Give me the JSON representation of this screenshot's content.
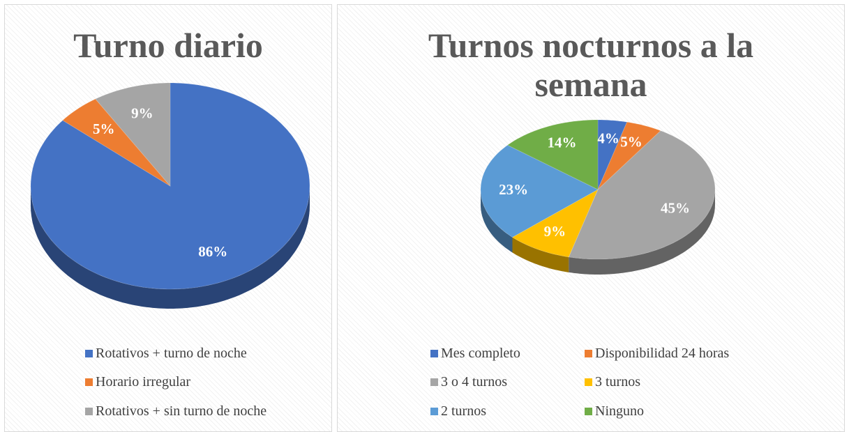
{
  "chart_data": [
    {
      "type": "pie",
      "title": "Turno diario",
      "categories": [
        "Rotativos + turno de noche",
        "Horario irregular",
        "Rotativos + sin turno de noche"
      ],
      "values": [
        86,
        5,
        9
      ],
      "value_labels": [
        "86%",
        "5%",
        "9%"
      ],
      "colors": [
        "#4472c4",
        "#ed7d31",
        "#a5a5a5"
      ],
      "legend": "bottom"
    },
    {
      "type": "pie",
      "title": "Turnos nocturnos a la semana",
      "categories": [
        "Mes completo",
        "Disponibilidad 24 horas",
        "3 o 4 turnos",
        "3 turnos",
        "2 turnos",
        "Ninguno"
      ],
      "values": [
        4,
        5,
        45,
        9,
        23,
        14
      ],
      "value_labels": [
        "4%",
        "5%",
        "45%",
        "9%",
        "23%",
        "14%"
      ],
      "colors": [
        "#4472c4",
        "#ed7d31",
        "#a5a5a5",
        "#ffc000",
        "#5b9bd5",
        "#70ad47"
      ],
      "legend": "bottom"
    }
  ]
}
